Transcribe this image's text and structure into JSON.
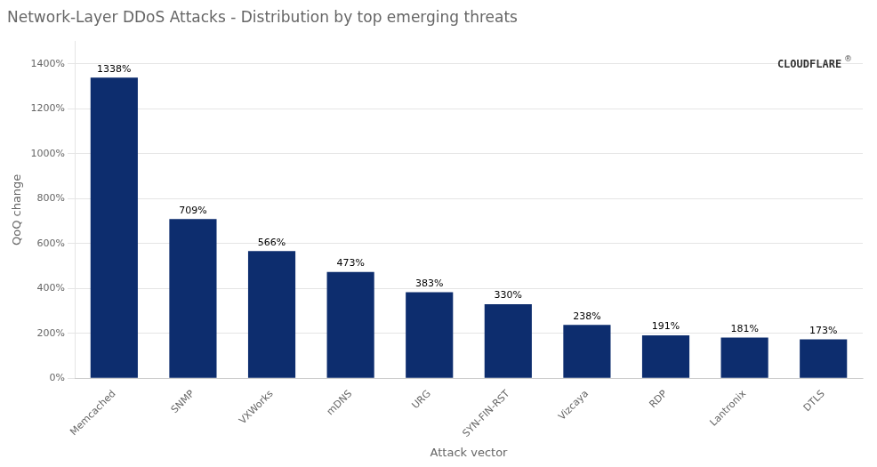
{
  "chart_data": {
    "type": "bar",
    "title": "Network-Layer DDoS Attacks - Distribution by top emerging threats",
    "xlabel": "Attack vector",
    "ylabel": "QoQ change",
    "categories": [
      "Memcached",
      "SNMP",
      "VXWorks",
      "mDNS",
      "URG",
      "SYN-FIN-RST",
      "Vizcaya",
      "RDP",
      "Lantronix",
      "DTLS"
    ],
    "values": [
      1338,
      709,
      566,
      473,
      383,
      330,
      238,
      191,
      181,
      173
    ],
    "value_labels": [
      "1338%",
      "709%",
      "566%",
      "473%",
      "383%",
      "330%",
      "238%",
      "191%",
      "181%",
      "173%"
    ],
    "data_labels": true,
    "color": "#0d2d6e",
    "ylim": [
      0,
      1500
    ],
    "yticks": [
      {
        "value": 0,
        "label": "0%"
      },
      {
        "value": 200,
        "label": "200%"
      },
      {
        "value": 400,
        "label": "400%"
      },
      {
        "value": 600,
        "label": "600%"
      },
      {
        "value": 800,
        "label": "800%"
      },
      {
        "value": 1000,
        "label": "1000%"
      },
      {
        "value": 1200,
        "label": "1200%"
      },
      {
        "value": 1400,
        "label": "1400%"
      }
    ],
    "grid": true,
    "annotations": [
      "CLOUDFLARE",
      "®"
    ]
  }
}
